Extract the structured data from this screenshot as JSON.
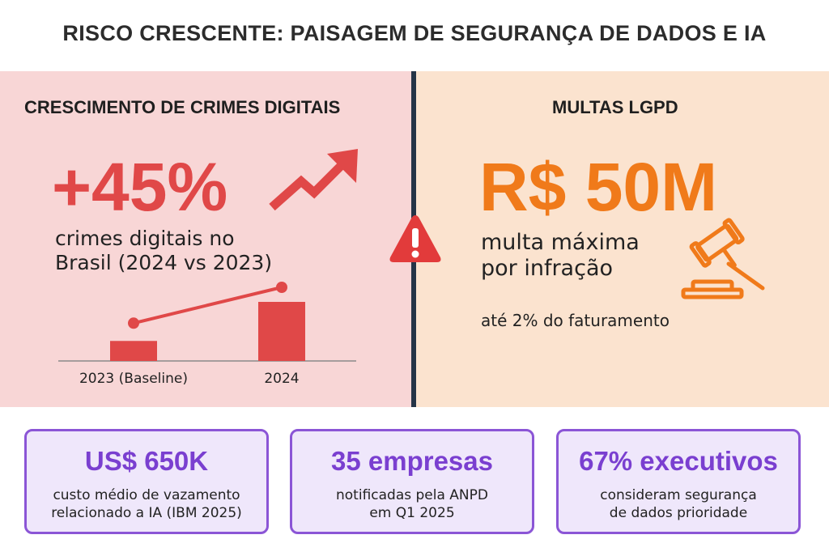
{
  "title": "RISCO CRESCENTE: PAISAGEM DE SEGURANÇA DE DADOS E IA",
  "left": {
    "heading": "CRESCIMENTO DE CRIMES DIGITAIS",
    "big_value": "+45%",
    "desc_line1": "crimes digitais no",
    "desc_line2": "Brasil (2024 vs 2023)",
    "icon": "trend-up-arrow-icon"
  },
  "right": {
    "heading": "MULTAS LGPD",
    "big_value": "R$ 50M",
    "desc_line1": "multa máxima",
    "desc_line2": "por infração",
    "note": "até 2% do faturamento",
    "icon": "gavel-icon"
  },
  "center_icon": "warning-icon",
  "chart_data": {
    "type": "bar",
    "categories": [
      "2023 (Baseline)",
      "2024"
    ],
    "values": [
      100,
      145
    ],
    "xlabel": "",
    "ylabel": "",
    "grid": false,
    "colors": [
      "#e04848"
    ]
  },
  "cards": [
    {
      "value": "US$ 650K",
      "line1": "custo médio de vazamento",
      "line2": "relacionado a IA (IBM 2025)"
    },
    {
      "value": "35 empresas",
      "line1": "notificadas pela ANPD",
      "line2": "em Q1 2025"
    },
    {
      "value": "67% executivos",
      "line1": "consideram segurança",
      "line2": "de dados prioridade"
    }
  ],
  "colors": {
    "red": "#e04848",
    "orange": "#f07a1a",
    "purple": "#7a3fd0",
    "divider": "#253447"
  }
}
